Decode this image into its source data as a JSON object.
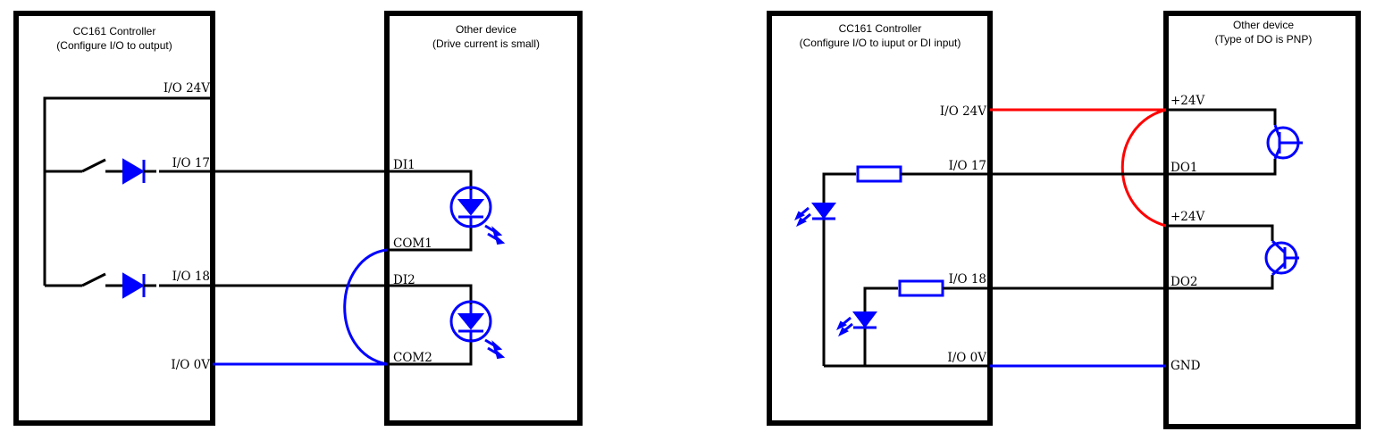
{
  "left_diagram": {
    "controller_title": "CC161 Controller",
    "controller_subtitle": "(Configure I/O to output)",
    "device_title": "Other device",
    "device_subtitle": "(Drive current is small)",
    "pins_controller": [
      "I/O 24V",
      "I/O 17",
      "I/O 18",
      "I/O 0V"
    ],
    "pins_device": [
      "DI1",
      "COM1",
      "DI2",
      "COM2"
    ]
  },
  "right_diagram": {
    "controller_title": "CC161 Controller",
    "controller_subtitle": "(Configure I/O to iuput or DI input)",
    "device_title": "Other device",
    "device_subtitle": "(Type of DO is PNP)",
    "pins_controller": [
      "I/O 24V",
      "I/O 17",
      "I/O 18",
      "I/O 0V"
    ],
    "pins_device": [
      "+24V",
      "DO1",
      "+24V",
      "DO2",
      "GND"
    ]
  },
  "colors": {
    "wire": "#000000",
    "blue": "#0000ff",
    "red": "#ff0000"
  }
}
